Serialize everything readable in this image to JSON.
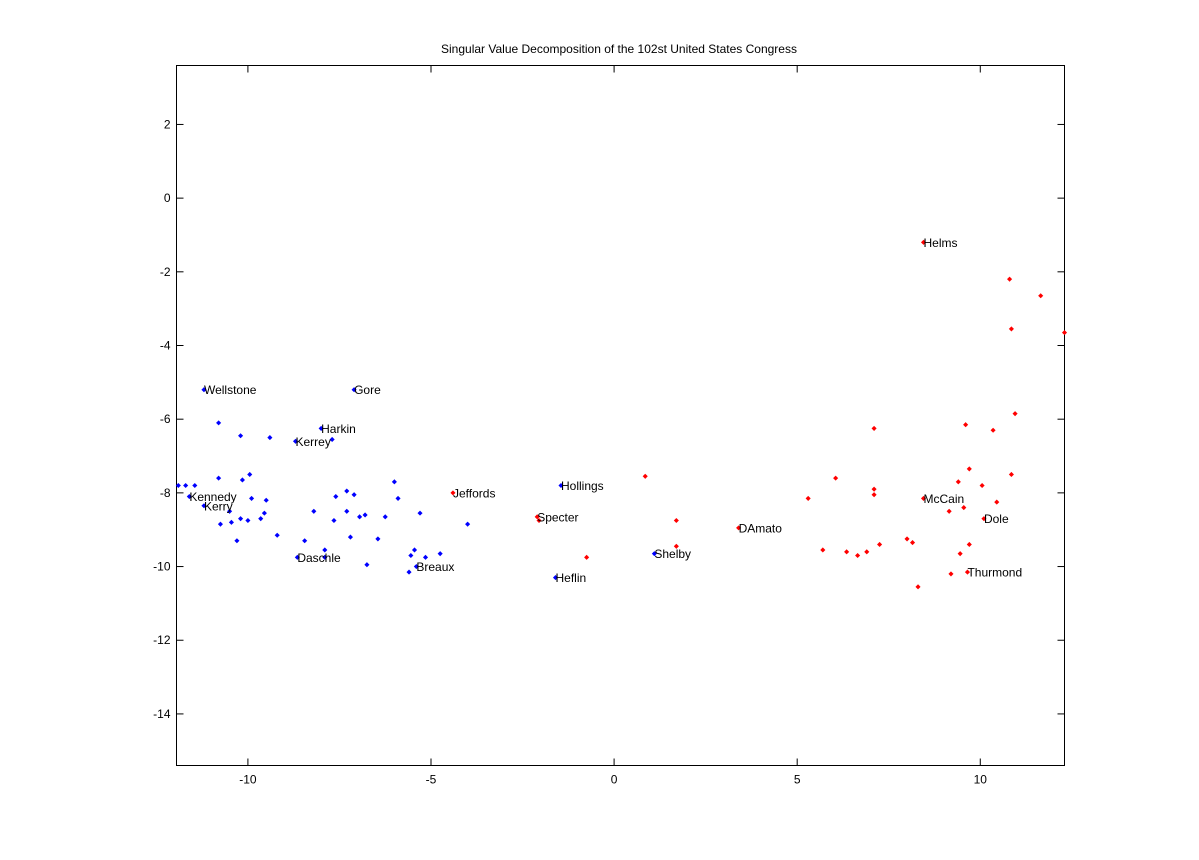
{
  "chart_data": {
    "type": "scatter",
    "title": "Singular Value Decomposition of the 102st United States Congress",
    "xlabel": "",
    "ylabel": "",
    "xlim": [
      -11.95,
      12.3
    ],
    "ylim": [
      -15.4,
      3.6
    ],
    "xticks": [
      -10,
      -5,
      0,
      5,
      10
    ],
    "yticks": [
      2,
      0,
      -2,
      -4,
      -6,
      -8,
      -10,
      -12,
      -14
    ],
    "grid": false,
    "legend": "none",
    "colors": {
      "democrat": "#0000ff",
      "republican": "#ff0000"
    },
    "series": [
      {
        "color": "#0000ff",
        "points": [
          [
            -11.2,
            -5.2
          ],
          [
            -7.1,
            -5.2
          ],
          [
            -10.8,
            -6.1
          ],
          [
            -8.0,
            -6.25
          ],
          [
            -10.2,
            -6.45
          ],
          [
            -9.4,
            -6.5
          ],
          [
            -8.7,
            -6.6
          ],
          [
            -7.7,
            -6.55
          ],
          [
            -11.9,
            -7.8
          ],
          [
            -11.7,
            -7.8
          ],
          [
            -11.45,
            -7.8
          ],
          [
            -11.6,
            -8.1
          ],
          [
            -11.2,
            -8.35
          ],
          [
            -10.8,
            -7.6
          ],
          [
            -10.15,
            -7.65
          ],
          [
            -9.95,
            -7.5
          ],
          [
            -10.5,
            -8.5
          ],
          [
            -9.9,
            -8.15
          ],
          [
            -9.5,
            -8.2
          ],
          [
            -9.55,
            -8.55
          ],
          [
            -10.2,
            -8.7
          ],
          [
            -10.0,
            -8.75
          ],
          [
            -10.45,
            -8.8
          ],
          [
            -10.75,
            -8.85
          ],
          [
            -9.65,
            -8.7
          ],
          [
            -9.2,
            -9.15
          ],
          [
            -10.3,
            -9.3
          ],
          [
            -7.6,
            -8.1
          ],
          [
            -7.3,
            -7.95
          ],
          [
            -7.1,
            -8.05
          ],
          [
            -8.2,
            -8.5
          ],
          [
            -7.3,
            -8.5
          ],
          [
            -7.65,
            -8.75
          ],
          [
            -6.95,
            -8.65
          ],
          [
            -6.8,
            -8.6
          ],
          [
            -8.45,
            -9.3
          ],
          [
            -7.2,
            -9.2
          ],
          [
            -7.9,
            -9.55
          ],
          [
            -8.65,
            -9.75
          ],
          [
            -7.9,
            -9.75
          ],
          [
            -6.75,
            -9.95
          ],
          [
            -6.0,
            -7.7
          ],
          [
            -5.9,
            -8.15
          ],
          [
            -6.25,
            -8.65
          ],
          [
            -5.3,
            -8.55
          ],
          [
            -6.45,
            -9.25
          ],
          [
            -5.45,
            -9.55
          ],
          [
            -5.55,
            -9.7
          ],
          [
            -5.15,
            -9.75
          ],
          [
            -4.75,
            -9.65
          ],
          [
            -5.6,
            -10.15
          ],
          [
            -5.4,
            -10.0
          ],
          [
            -4.0,
            -8.85
          ],
          [
            -1.45,
            -7.8
          ],
          [
            1.1,
            -9.65
          ],
          [
            -1.6,
            -10.3
          ]
        ]
      },
      {
        "color": "#ff0000",
        "points": [
          [
            8.45,
            -1.2
          ],
          [
            10.8,
            -2.2
          ],
          [
            11.65,
            -2.65
          ],
          [
            10.85,
            -3.55
          ],
          [
            12.3,
            -3.65
          ],
          [
            10.95,
            -5.85
          ],
          [
            9.6,
            -6.15
          ],
          [
            10.35,
            -6.3
          ],
          [
            7.1,
            -6.25
          ],
          [
            9.7,
            -7.35
          ],
          [
            10.05,
            -7.8
          ],
          [
            9.4,
            -7.7
          ],
          [
            10.85,
            -7.5
          ],
          [
            10.45,
            -8.25
          ],
          [
            9.55,
            -8.4
          ],
          [
            9.15,
            -8.5
          ],
          [
            8.45,
            -8.15
          ],
          [
            10.1,
            -8.7
          ],
          [
            7.1,
            -7.9
          ],
          [
            7.1,
            -8.05
          ],
          [
            6.05,
            -7.6
          ],
          [
            5.3,
            -8.15
          ],
          [
            0.85,
            -7.55
          ],
          [
            -4.4,
            -8.0
          ],
          [
            -2.1,
            -8.65
          ],
          [
            -2.05,
            -8.75
          ],
          [
            1.7,
            -8.75
          ],
          [
            1.7,
            -9.45
          ],
          [
            3.4,
            -8.95
          ],
          [
            5.7,
            -9.55
          ],
          [
            6.35,
            -9.6
          ],
          [
            6.65,
            -9.7
          ],
          [
            6.9,
            -9.6
          ],
          [
            7.25,
            -9.4
          ],
          [
            8.0,
            -9.25
          ],
          [
            8.15,
            -9.35
          ],
          [
            9.45,
            -9.65
          ],
          [
            9.7,
            -9.4
          ],
          [
            9.65,
            -10.15
          ],
          [
            9.2,
            -10.2
          ],
          [
            8.3,
            -10.55
          ],
          [
            -0.75,
            -9.75
          ]
        ]
      }
    ],
    "labels": [
      {
        "text": "Helms",
        "x": 8.45,
        "y": -1.2,
        "party": "republican"
      },
      {
        "text": "Wellstone",
        "x": -11.2,
        "y": -5.2,
        "party": "democrat"
      },
      {
        "text": "Gore",
        "x": -7.1,
        "y": -5.2,
        "party": "democrat"
      },
      {
        "text": "Harkin",
        "x": -8.0,
        "y": -6.25,
        "party": "democrat"
      },
      {
        "text": "Kerrey",
        "x": -8.7,
        "y": -6.6,
        "party": "democrat"
      },
      {
        "text": "Kennedy",
        "x": -11.6,
        "y": -8.1,
        "party": "democrat"
      },
      {
        "text": "Kerry",
        "x": -11.2,
        "y": -8.35,
        "party": "democrat"
      },
      {
        "text": "Daschle",
        "x": -8.65,
        "y": -9.75,
        "party": "democrat"
      },
      {
        "text": "Breaux",
        "x": -5.4,
        "y": -10.0,
        "party": "democrat"
      },
      {
        "text": "Jeffords",
        "x": -4.4,
        "y": -8.0,
        "party": "republican"
      },
      {
        "text": "Hollings",
        "x": -1.45,
        "y": -7.8,
        "party": "democrat"
      },
      {
        "text": "Specter",
        "x": -2.1,
        "y": -8.65,
        "party": "republican"
      },
      {
        "text": "Heflin",
        "x": -1.6,
        "y": -10.3,
        "party": "democrat"
      },
      {
        "text": "Shelby",
        "x": 1.1,
        "y": -9.65,
        "party": "democrat"
      },
      {
        "text": "DAmato",
        "x": 3.4,
        "y": -8.95,
        "party": "republican"
      },
      {
        "text": "McCain",
        "x": 8.45,
        "y": -8.15,
        "party": "republican"
      },
      {
        "text": "Dole",
        "x": 10.1,
        "y": -8.7,
        "party": "republican"
      },
      {
        "text": "Thurmond",
        "x": 9.65,
        "y": -10.15,
        "party": "republican"
      }
    ]
  }
}
